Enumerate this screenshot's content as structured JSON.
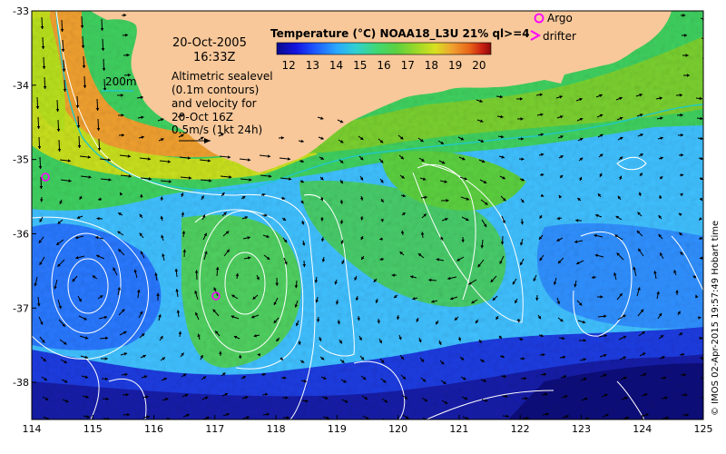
{
  "title": "Temperature (°C) NOAA18_L3U 21% ql>=4",
  "colorbar": {
    "ticks": [
      "12",
      "13",
      "14",
      "15",
      "16",
      "17",
      "18",
      "19",
      "20"
    ],
    "colors": [
      "#0a0a8c",
      "#1414e0",
      "#1e5aff",
      "#2aa8ff",
      "#30d0d0",
      "#40d870",
      "#5cd040",
      "#9ad828",
      "#d8e020",
      "#f0a030",
      "#e86418",
      "#c81e12",
      "#8c0a0a"
    ]
  },
  "date_text": "20-Oct-2005",
  "time_text": "16:33Z",
  "depth_label": "200m",
  "altimetry_lines": [
    "Altimetric sealevel",
    "(0.1m contours)",
    "and velocity for",
    "20-Oct 16Z"
  ],
  "velocity_scale_label": "0.5m/s (1kt 24h)",
  "legend": {
    "argo": "Argo",
    "drifter": "drifter"
  },
  "credit": "© IMOS 02-Apr-2015 19:57:49 Hobart time",
  "axes": {
    "x_ticks": [
      "114",
      "115",
      "116",
      "117",
      "118",
      "119",
      "120",
      "121",
      "122",
      "123",
      "124",
      "125"
    ],
    "y_ticks": [
      "-33",
      "-34",
      "-35",
      "-36",
      "-37",
      "-38"
    ]
  },
  "chart_data": {
    "type": "heatmap",
    "title": "Temperature (°C) NOAA18_L3U 21% ql>=4",
    "xlim": [
      114,
      125
    ],
    "ylim": [
      -38.5,
      -33
    ],
    "colorbar_range": [
      11.5,
      20.5
    ],
    "argo_floats": [
      {
        "lon": 114.2,
        "lat": -35.2
      },
      {
        "lon": 117.0,
        "lat": -36.8
      },
      {
        "lon": 122.3,
        "lat": -33.05
      }
    ],
    "colors": {
      "land": "#f8c89a",
      "argo": "#ff00ff",
      "contour": "#ffffff",
      "isobath": "#20c8c8"
    }
  }
}
